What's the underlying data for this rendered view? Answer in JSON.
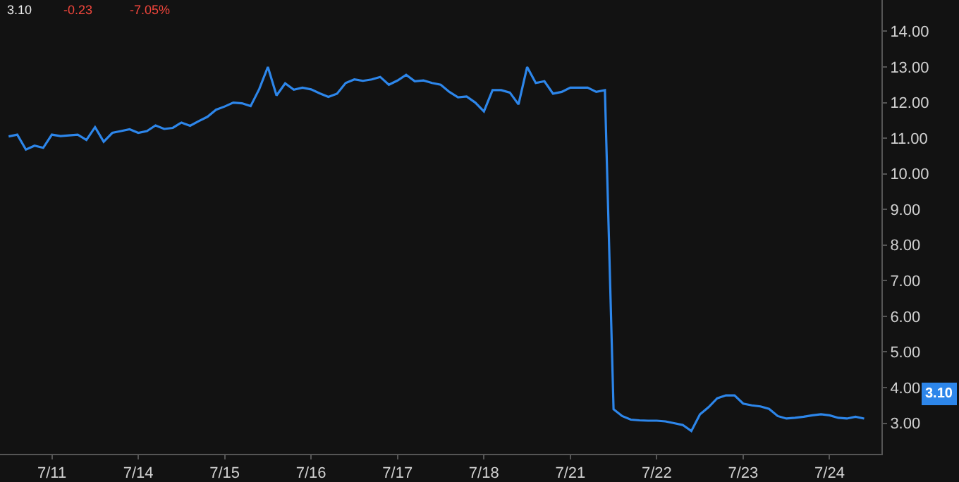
{
  "chart_data": {
    "type": "line",
    "annotations": [
      "3.10",
      "-0.23",
      "-7.05%",
      "3.10"
    ],
    "categories": [
      null,
      null,
      null,
      null,
      null,
      "7/11",
      null,
      null,
      null,
      null,
      null,
      null,
      null,
      null,
      null,
      "7/14",
      null,
      null,
      null,
      null,
      null,
      null,
      null,
      null,
      null,
      "7/15",
      null,
      null,
      null,
      null,
      null,
      null,
      null,
      null,
      null,
      "7/16",
      null,
      null,
      null,
      null,
      null,
      null,
      null,
      null,
      null,
      "7/17",
      null,
      null,
      null,
      null,
      null,
      null,
      null,
      null,
      null,
      "7/18",
      null,
      null,
      null,
      null,
      null,
      null,
      null,
      null,
      null,
      "7/21",
      null,
      null,
      null,
      null,
      null,
      null,
      null,
      null,
      null,
      "7/22",
      null,
      null,
      null,
      null,
      null,
      null,
      null,
      null,
      null,
      "7/23",
      null,
      null,
      null,
      null,
      null,
      null,
      null,
      null,
      null,
      "7/24",
      null,
      null,
      null,
      null
    ],
    "series": [
      {
        "color": "#2d86ea",
        "values": [
          11.05,
          11.1,
          10.68,
          10.79,
          10.73,
          11.1,
          11.06,
          11.08,
          11.1,
          10.95,
          11.31,
          10.9,
          11.15,
          11.2,
          11.25,
          11.15,
          11.2,
          11.36,
          11.26,
          11.29,
          11.44,
          11.35,
          11.48,
          11.6,
          11.8,
          11.89,
          12.0,
          11.98,
          11.9,
          12.38,
          13.0,
          12.2,
          12.54,
          12.36,
          12.42,
          12.37,
          12.26,
          12.16,
          12.25,
          12.55,
          12.65,
          12.61,
          12.65,
          12.72,
          12.5,
          12.62,
          12.78,
          12.6,
          12.62,
          12.55,
          12.5,
          12.3,
          12.15,
          12.17,
          12.0,
          11.75,
          12.35,
          12.35,
          12.28,
          11.95,
          13.0,
          12.55,
          12.6,
          12.25,
          12.3,
          12.42,
          12.42,
          12.42,
          12.3,
          12.35,
          3.39,
          3.2,
          3.1,
          3.08,
          3.07,
          3.07,
          3.05,
          3.0,
          2.95,
          2.78,
          3.25,
          3.45,
          3.7,
          3.78,
          3.78,
          3.55,
          3.5,
          3.47,
          3.4,
          3.2,
          3.13,
          3.15,
          3.18,
          3.22,
          3.25,
          3.22,
          3.15,
          3.13,
          3.18,
          3.13
        ]
      }
    ],
    "ylim": [
      2.14,
      14.88
    ],
    "yticks": [
      {
        "value": 3,
        "label": "3.00"
      },
      {
        "value": 4,
        "label": "4.00"
      },
      {
        "value": 5,
        "label": "5.00"
      },
      {
        "value": 6,
        "label": "6.00"
      },
      {
        "value": 7,
        "label": "7.00"
      },
      {
        "value": 8,
        "label": "8.00"
      },
      {
        "value": 9,
        "label": "9.00"
      },
      {
        "value": 10,
        "label": "10.00"
      },
      {
        "value": 11,
        "label": "11.00"
      },
      {
        "value": 12,
        "label": "12.00"
      },
      {
        "value": 13,
        "label": "13.00"
      },
      {
        "value": 14,
        "label": "14.00"
      }
    ],
    "grid": false,
    "marker": "none",
    "line_style": "solid"
  }
}
